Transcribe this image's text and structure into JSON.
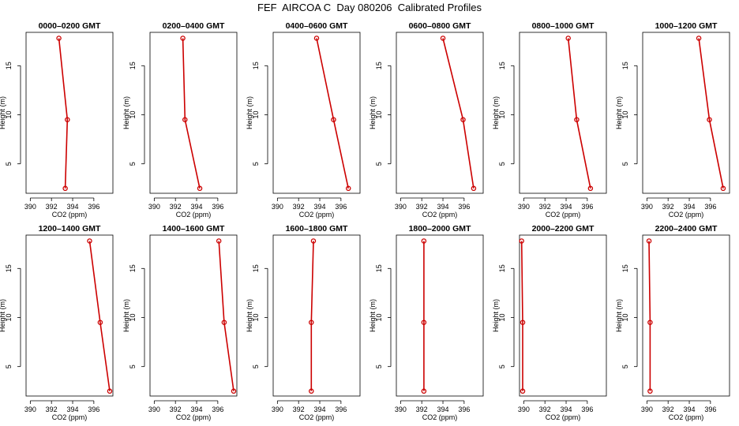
{
  "title": "FEF  AIRCOA C  Day 080206  Calibrated Profiles",
  "colors": {
    "line": "#cc0000",
    "axis": "#000000",
    "background": "#ffffff"
  },
  "chart_data": {
    "type": "line",
    "grid": false,
    "shared": {
      "xlabel": "CO2 (ppm)",
      "ylabel": "Height (m)",
      "xlim": [
        389.6,
        397.8
      ],
      "ylim": [
        2.0,
        18.4
      ],
      "xticks": [
        390,
        392,
        394,
        396
      ],
      "yticks": [
        5,
        10,
        15
      ]
    },
    "panels": [
      {
        "title": "0000–0200 GMT",
        "points": [
          [
            392.7,
            17.8
          ],
          [
            393.5,
            9.5
          ],
          [
            393.3,
            2.5
          ]
        ]
      },
      {
        "title": "0200–0400 GMT",
        "points": [
          [
            392.7,
            17.8
          ],
          [
            392.9,
            9.5
          ],
          [
            394.3,
            2.5
          ]
        ]
      },
      {
        "title": "0400–0600 GMT",
        "points": [
          [
            393.7,
            17.8
          ],
          [
            395.3,
            9.5
          ],
          [
            396.7,
            2.5
          ]
        ]
      },
      {
        "title": "0600–0800 GMT",
        "points": [
          [
            394.0,
            17.8
          ],
          [
            395.9,
            9.5
          ],
          [
            396.9,
            2.5
          ]
        ]
      },
      {
        "title": "0800–1000 GMT",
        "points": [
          [
            394.2,
            17.8
          ],
          [
            395.0,
            9.5
          ],
          [
            396.3,
            2.5
          ]
        ]
      },
      {
        "title": "1000–1200 GMT",
        "points": [
          [
            394.9,
            17.8
          ],
          [
            395.9,
            9.5
          ],
          [
            397.2,
            2.5
          ]
        ]
      },
      {
        "title": "1200–1400 GMT",
        "points": [
          [
            395.6,
            17.8
          ],
          [
            396.6,
            9.5
          ],
          [
            397.5,
            2.5
          ]
        ]
      },
      {
        "title": "1400–1600 GMT",
        "points": [
          [
            396.1,
            17.8
          ],
          [
            396.6,
            9.5
          ],
          [
            397.5,
            2.5
          ]
        ]
      },
      {
        "title": "1600–1800 GMT",
        "points": [
          [
            393.4,
            17.8
          ],
          [
            393.2,
            9.5
          ],
          [
            393.2,
            2.5
          ]
        ]
      },
      {
        "title": "1800–2000 GMT",
        "points": [
          [
            392.2,
            17.8
          ],
          [
            392.2,
            9.5
          ],
          [
            392.2,
            2.5
          ]
        ]
      },
      {
        "title": "2000–2200 GMT",
        "points": [
          [
            389.8,
            17.8
          ],
          [
            389.9,
            9.5
          ],
          [
            389.9,
            2.5
          ]
        ]
      },
      {
        "title": "2200–2400 GMT",
        "points": [
          [
            390.2,
            17.8
          ],
          [
            390.3,
            9.5
          ],
          [
            390.3,
            2.5
          ]
        ]
      }
    ]
  }
}
